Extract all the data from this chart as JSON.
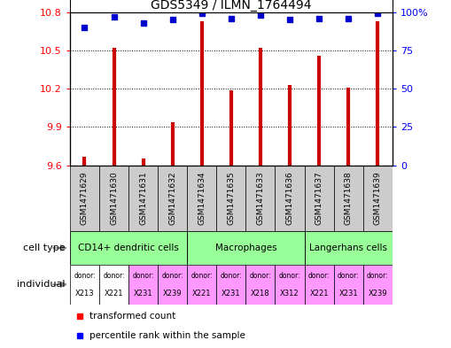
{
  "title": "GDS5349 / ILMN_1764494",
  "samples": [
    "GSM1471629",
    "GSM1471630",
    "GSM1471631",
    "GSM1471632",
    "GSM1471634",
    "GSM1471635",
    "GSM1471633",
    "GSM1471636",
    "GSM1471637",
    "GSM1471638",
    "GSM1471639"
  ],
  "transformed_count": [
    9.67,
    10.52,
    9.65,
    9.94,
    10.73,
    10.19,
    10.52,
    10.23,
    10.46,
    10.21,
    10.73
  ],
  "percentile_rank": [
    90,
    97,
    93,
    95,
    99,
    96,
    98,
    95,
    96,
    96,
    99
  ],
  "ylim_left": [
    9.6,
    10.8
  ],
  "ylim_right": [
    0,
    100
  ],
  "yticks_left": [
    9.6,
    9.9,
    10.2,
    10.5,
    10.8
  ],
  "yticks_right": [
    0,
    25,
    50,
    75,
    100
  ],
  "ytick_labels_left": [
    "9.6",
    "9.9",
    "10.2",
    "10.5",
    "10.8"
  ],
  "ytick_labels_right": [
    "0",
    "25",
    "50",
    "75",
    "100%"
  ],
  "bar_color": "#CC0000",
  "dot_color": "#0000CC",
  "cell_types": [
    {
      "label": "CD14+ dendritic cells",
      "start": 0,
      "end": 4,
      "color": "#99FF99"
    },
    {
      "label": "Macrophages",
      "start": 4,
      "end": 8,
      "color": "#99FF99"
    },
    {
      "label": "Langerhans cells",
      "start": 8,
      "end": 11,
      "color": "#99FF99"
    }
  ],
  "individuals": [
    {
      "donor": "X213",
      "color": "#FFFFFF"
    },
    {
      "donor": "X221",
      "color": "#FFFFFF"
    },
    {
      "donor": "X231",
      "color": "#FF99FF"
    },
    {
      "donor": "X239",
      "color": "#FF99FF"
    },
    {
      "donor": "X221",
      "color": "#FF99FF"
    },
    {
      "donor": "X231",
      "color": "#FF99FF"
    },
    {
      "donor": "X218",
      "color": "#FF99FF"
    },
    {
      "donor": "X312",
      "color": "#FF99FF"
    },
    {
      "donor": "X221",
      "color": "#FF99FF"
    },
    {
      "donor": "X231",
      "color": "#FF99FF"
    },
    {
      "donor": "X239",
      "color": "#FF99FF"
    }
  ],
  "ind_bg_colors": [
    "#FFFFFF",
    "#FFFFFF",
    "#FF99FF",
    "#FF99FF",
    "#FF99FF",
    "#FF99FF",
    "#FF99FF",
    "#FF99FF",
    "#FF99FF",
    "#FF99FF",
    "#FF99FF"
  ],
  "legend_bar_label": "transformed count",
  "legend_dot_label": "percentile rank within the sample",
  "xlabel_bg": "#CCCCCC"
}
